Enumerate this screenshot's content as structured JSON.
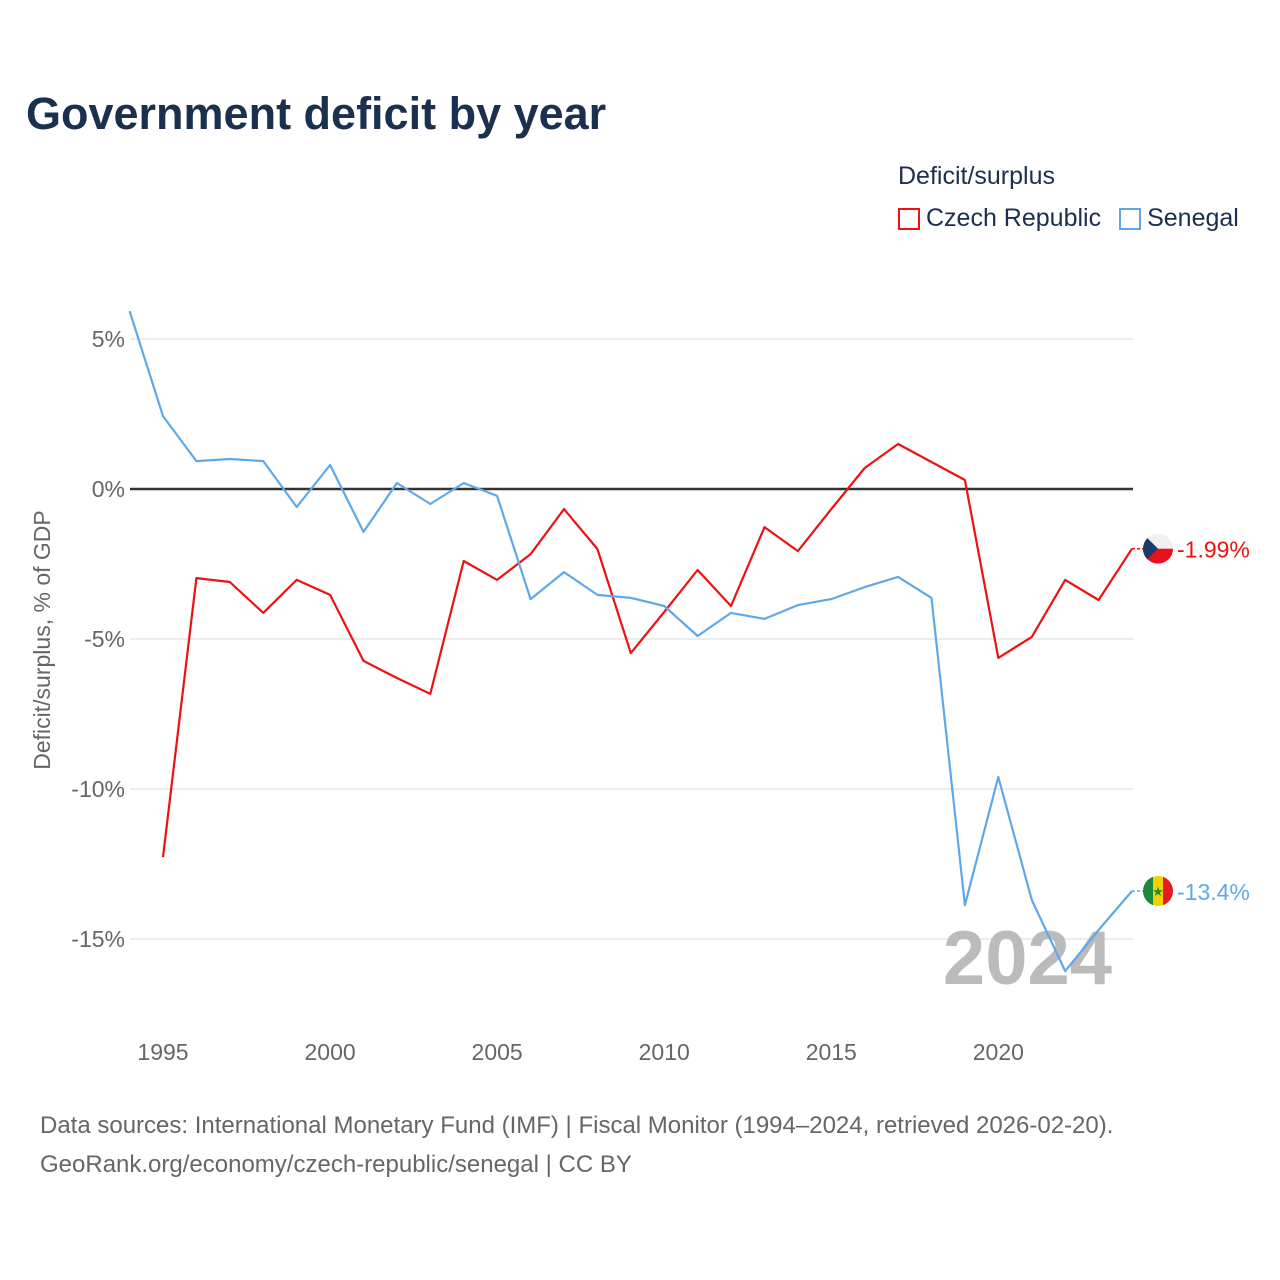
{
  "chart_data": {
    "type": "line",
    "title": "Government deficit by year",
    "ylabel": "Deficit/surplus, % of GDP",
    "xlabel": "",
    "xlim": [
      1994,
      2024
    ],
    "ylim": [
      -17.5,
      6
    ],
    "x_ticks": [
      1995,
      2000,
      2005,
      2010,
      2015,
      2020
    ],
    "x_tick_labels": [
      "1995",
      "2000",
      "2005",
      "2010",
      "2015",
      "2020"
    ],
    "y_ticks": [
      5,
      0,
      -5,
      -10,
      -15
    ],
    "y_tick_labels": [
      "5%",
      "0%",
      "-5%",
      "-10%",
      "-15%"
    ],
    "grid": true,
    "legend_title": "Deficit/surplus",
    "legend_position": "top-right",
    "year_watermark": "2024",
    "series": [
      {
        "name": "Czech Republic",
        "color": "#ee1111",
        "end_label": "-1.99%",
        "flag_icon": "czech-flag-icon",
        "x": [
          1995,
          1996,
          1997,
          1998,
          1999,
          2000,
          2001,
          2002,
          2003,
          2004,
          2005,
          2006,
          2007,
          2008,
          2009,
          2010,
          2011,
          2012,
          2013,
          2014,
          2015,
          2016,
          2017,
          2018,
          2019,
          2020,
          2021,
          2022,
          2023,
          2024
        ],
        "values": [
          -12.27,
          -2.97,
          -3.1,
          -4.13,
          -3.03,
          -3.53,
          -5.73,
          -6.3,
          -6.83,
          -2.4,
          -3.03,
          -2.17,
          -0.67,
          -2.0,
          -5.47,
          -4.1,
          -2.7,
          -3.9,
          -1.27,
          -2.07,
          -0.67,
          0.7,
          1.5,
          0.9,
          0.3,
          -5.63,
          -4.93,
          -3.03,
          -3.7,
          -1.99
        ]
      },
      {
        "name": "Senegal",
        "color": "#5fa8e8",
        "end_label": "-13.4%",
        "flag_icon": "senegal-flag-icon",
        "x": [
          1994,
          1995,
          1996,
          1997,
          1998,
          1999,
          2000,
          2001,
          2002,
          2003,
          2004,
          2005,
          2006,
          2007,
          2008,
          2009,
          2010,
          2011,
          2012,
          2013,
          2014,
          2015,
          2016,
          2017,
          2018,
          2019,
          2020,
          2021,
          2022,
          2023,
          2024
        ],
        "values": [
          5.93,
          2.43,
          0.93,
          1.0,
          0.93,
          -0.6,
          0.8,
          -1.43,
          0.2,
          -0.5,
          0.2,
          -0.23,
          -3.67,
          -2.77,
          -3.53,
          -3.63,
          -3.9,
          -4.9,
          -4.13,
          -4.33,
          -3.87,
          -3.67,
          -3.27,
          -2.93,
          -3.63,
          -13.87,
          -9.6,
          -13.7,
          -16.07,
          -14.7,
          -13.4
        ]
      }
    ]
  },
  "footer": {
    "line1": "Data sources: International Monetary Fund (IMF) | Fiscal Monitor (1994–2024, retrieved 2026-02-20).",
    "line2": "GeoRank.org/economy/czech-republic/senegal | CC BY"
  }
}
